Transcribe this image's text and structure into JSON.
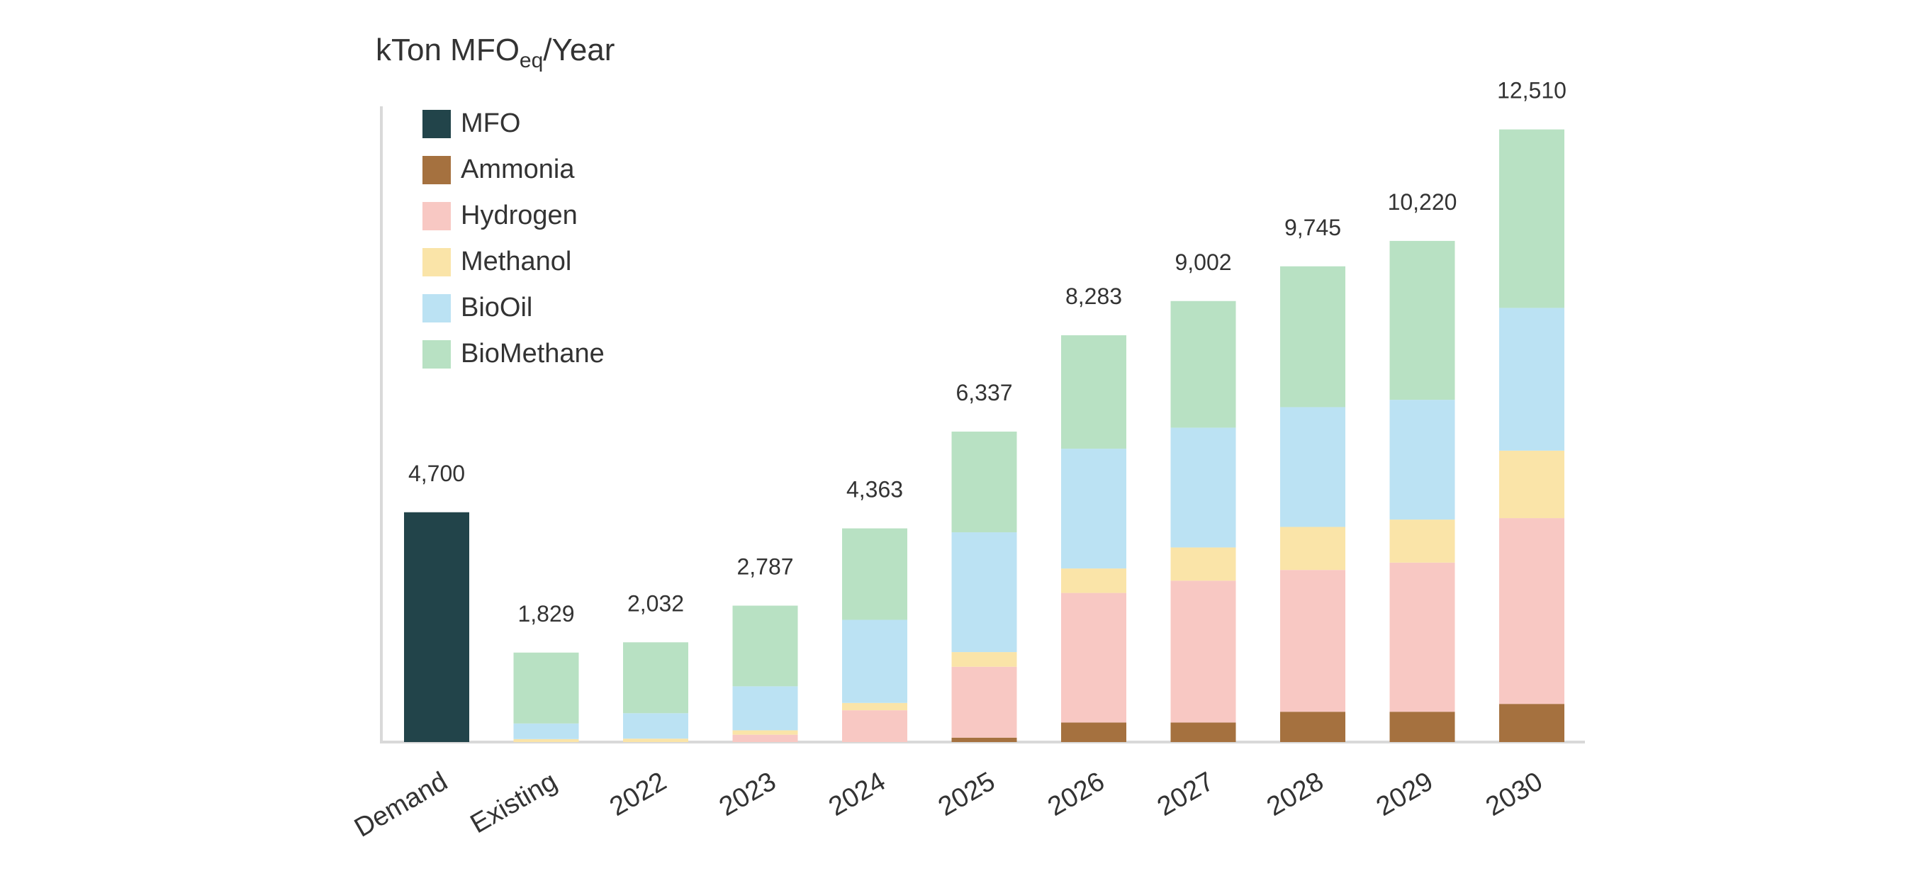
{
  "chart_data": {
    "type": "bar",
    "stacked": true,
    "title": "",
    "ylabel": {
      "prefix": "kTon MFO",
      "subscript": "eq",
      "suffix": "/Year"
    },
    "categories": [
      "Demand",
      "Existing",
      "2022",
      "2023",
      "2024",
      "2025",
      "2026",
      "2027",
      "2028",
      "2029",
      "2030"
    ],
    "totals": [
      "4,700",
      "1,829",
      "2,032",
      "2,787",
      "4,363",
      "6,337",
      "8,283",
      "9,002",
      "9,745",
      "10,220",
      "12,510"
    ],
    "series": [
      {
        "name": "MFO",
        "color": "#22444a",
        "values": [
          4700,
          0,
          0,
          0,
          0,
          0,
          0,
          0,
          0,
          0,
          0
        ]
      },
      {
        "name": "Ammonia",
        "color": "#a5713f",
        "values": [
          0,
          0,
          0,
          0,
          0,
          90,
          400,
          400,
          620,
          620,
          780
        ]
      },
      {
        "name": "Hydrogen",
        "color": "#f8c8c3",
        "values": [
          0,
          0,
          0,
          150,
          650,
          1450,
          2650,
          2900,
          2900,
          3050,
          3800
        ]
      },
      {
        "name": "Methanol",
        "color": "#fae4a8",
        "values": [
          0,
          60,
          70,
          90,
          150,
          300,
          500,
          680,
          880,
          880,
          1380
        ]
      },
      {
        "name": "BioOil",
        "color": "#bbe2f3",
        "values": [
          0,
          320,
          520,
          900,
          1700,
          2450,
          2450,
          2450,
          2450,
          2450,
          2920
        ]
      },
      {
        "name": "BioMethane",
        "color": "#b8e1c3",
        "values": [
          0,
          1450,
          1450,
          1650,
          1870,
          2060,
          2320,
          2590,
          2880,
          3250,
          3650
        ]
      }
    ],
    "legend_position": "top-left",
    "grid": false,
    "ylim": [
      0,
      12800
    ]
  }
}
